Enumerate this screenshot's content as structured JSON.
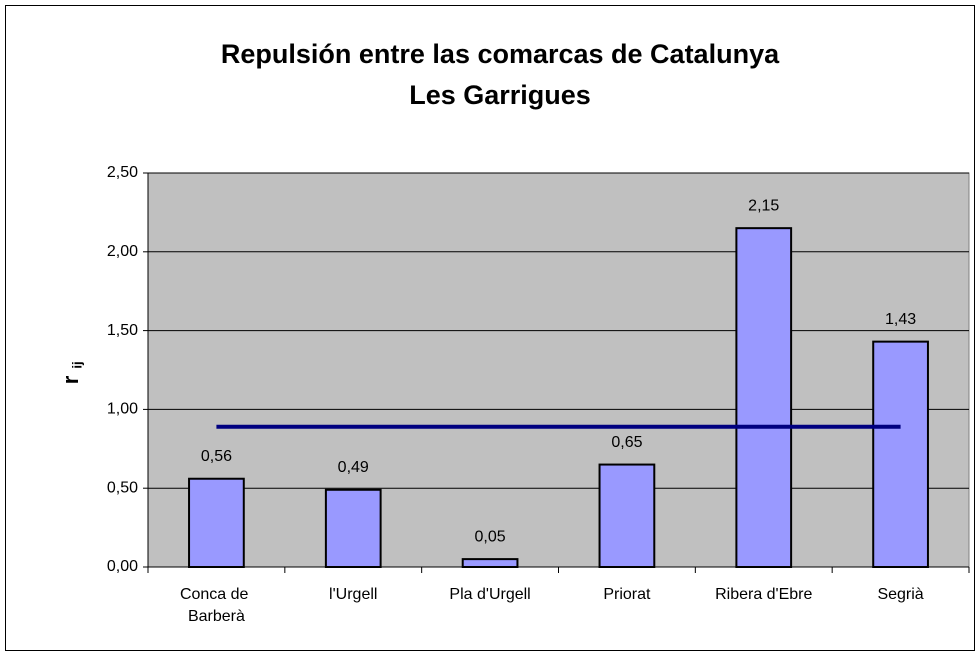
{
  "chart_data": {
    "type": "bar",
    "title": "Repulsión entre las comarcas de Catalunya",
    "subtitle": "Les Garrigues",
    "ylabel": {
      "main": "r",
      "sub": "ij"
    },
    "categories": [
      "Conca de Barberà",
      "l'Urgell",
      "Pla d'Urgell",
      "Priorat",
      "Ribera d'Ebre",
      "Segrià"
    ],
    "series": [
      {
        "type": "bar",
        "color": "#9999ff",
        "values": [
          0.56,
          0.49,
          0.05,
          0.65,
          2.15,
          1.43
        ],
        "value_labels": [
          "0,56",
          "0,49",
          "0,05",
          "0,65",
          "2,15",
          "1,43"
        ]
      },
      {
        "type": "line",
        "color": "#000080",
        "values": [
          0.89,
          0.89,
          0.89,
          0.89,
          0.89,
          0.89
        ]
      }
    ],
    "ylim": [
      0,
      2.5
    ],
    "yticks": [
      {
        "value": 0,
        "label": "0,00"
      },
      {
        "value": 0.5,
        "label": "0,50"
      },
      {
        "value": 1,
        "label": "1,00"
      },
      {
        "value": 1.5,
        "label": "1,50"
      },
      {
        "value": 2,
        "label": "2,00"
      },
      {
        "value": 2.5,
        "label": "2,50"
      }
    ],
    "grid": true,
    "plot_background": "#c0c0c0"
  }
}
